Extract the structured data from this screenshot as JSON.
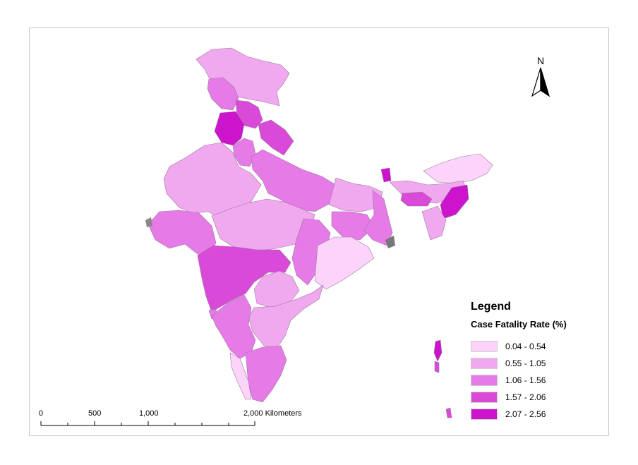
{
  "north_arrow": {
    "label": "N"
  },
  "legend": {
    "title": "Legend",
    "subtitle": "Case Fatality Rate (%)",
    "classes": [
      {
        "label": "0.04 - 0.54",
        "color": "#fcd4fa"
      },
      {
        "label": "0.55 - 1.05",
        "color": "#f0a8ee"
      },
      {
        "label": "1.06 - 1.56",
        "color": "#e67ae6"
      },
      {
        "label": "1.57 - 2.06",
        "color": "#d94ad8"
      },
      {
        "label": "2.07 - 2.56",
        "color": "#cc14cc"
      }
    ]
  },
  "scale_bar": {
    "labels": [
      "0",
      "500",
      "1,000",
      "2,000 Kilometers"
    ]
  }
}
